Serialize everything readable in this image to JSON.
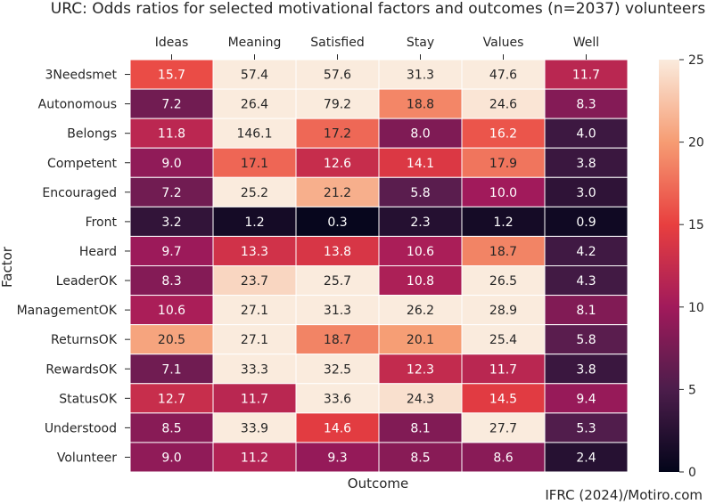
{
  "chart_data": {
    "type": "heatmap",
    "title": "URC: Odds ratios for selected motivational factors and outcomes (n=2037) volunteers",
    "xlabel": "Outcome",
    "ylabel": "Factor",
    "columns": [
      "Ideas",
      "Meaning",
      "Satisfied",
      "Stay",
      "Values",
      "Well"
    ],
    "rows": [
      "3Needsmet",
      "Autonomous",
      "Belongs",
      "Competent",
      "Encouraged",
      "Front",
      "Heard",
      "LeaderOK",
      "ManagementOK",
      "ReturnsOK",
      "RewardsOK",
      "StatusOK",
      "Understood",
      "Volunteer"
    ],
    "values": [
      [
        15.7,
        57.4,
        57.6,
        31.3,
        47.6,
        11.7
      ],
      [
        7.2,
        26.4,
        79.2,
        18.8,
        24.6,
        8.3
      ],
      [
        11.8,
        146.1,
        17.2,
        8.0,
        16.2,
        4.0
      ],
      [
        9.0,
        17.1,
        12.6,
        14.1,
        17.9,
        3.8
      ],
      [
        7.2,
        25.2,
        21.2,
        5.8,
        10.0,
        3.0
      ],
      [
        3.2,
        1.2,
        0.3,
        2.3,
        1.2,
        0.9
      ],
      [
        9.7,
        13.3,
        13.8,
        10.6,
        18.7,
        4.2
      ],
      [
        8.3,
        23.7,
        25.7,
        10.8,
        26.5,
        4.3
      ],
      [
        10.6,
        27.1,
        31.3,
        26.2,
        28.9,
        8.1
      ],
      [
        20.5,
        27.1,
        18.7,
        20.1,
        25.4,
        5.8
      ],
      [
        7.1,
        33.3,
        32.5,
        12.3,
        11.7,
        3.8
      ],
      [
        12.7,
        11.7,
        33.6,
        24.3,
        14.5,
        9.4
      ],
      [
        8.5,
        33.9,
        14.6,
        8.1,
        27.7,
        5.3
      ],
      [
        9.0,
        11.2,
        9.3,
        8.5,
        8.6,
        2.4
      ]
    ],
    "value_format": "1 decimal",
    "color_scale": {
      "min": 0,
      "max": 25,
      "colormap": "rocket",
      "stops": [
        "#03051a",
        "#4c1d4b",
        "#a11a5b",
        "#e83f3f",
        "#f69c73",
        "#faebdd"
      ]
    },
    "colorbar_ticks": [
      0,
      5,
      10,
      15,
      20,
      25
    ],
    "grid": "white cell borders",
    "legend": "colorbar right"
  },
  "credit": "IFRC (2024)/Motiro.com"
}
